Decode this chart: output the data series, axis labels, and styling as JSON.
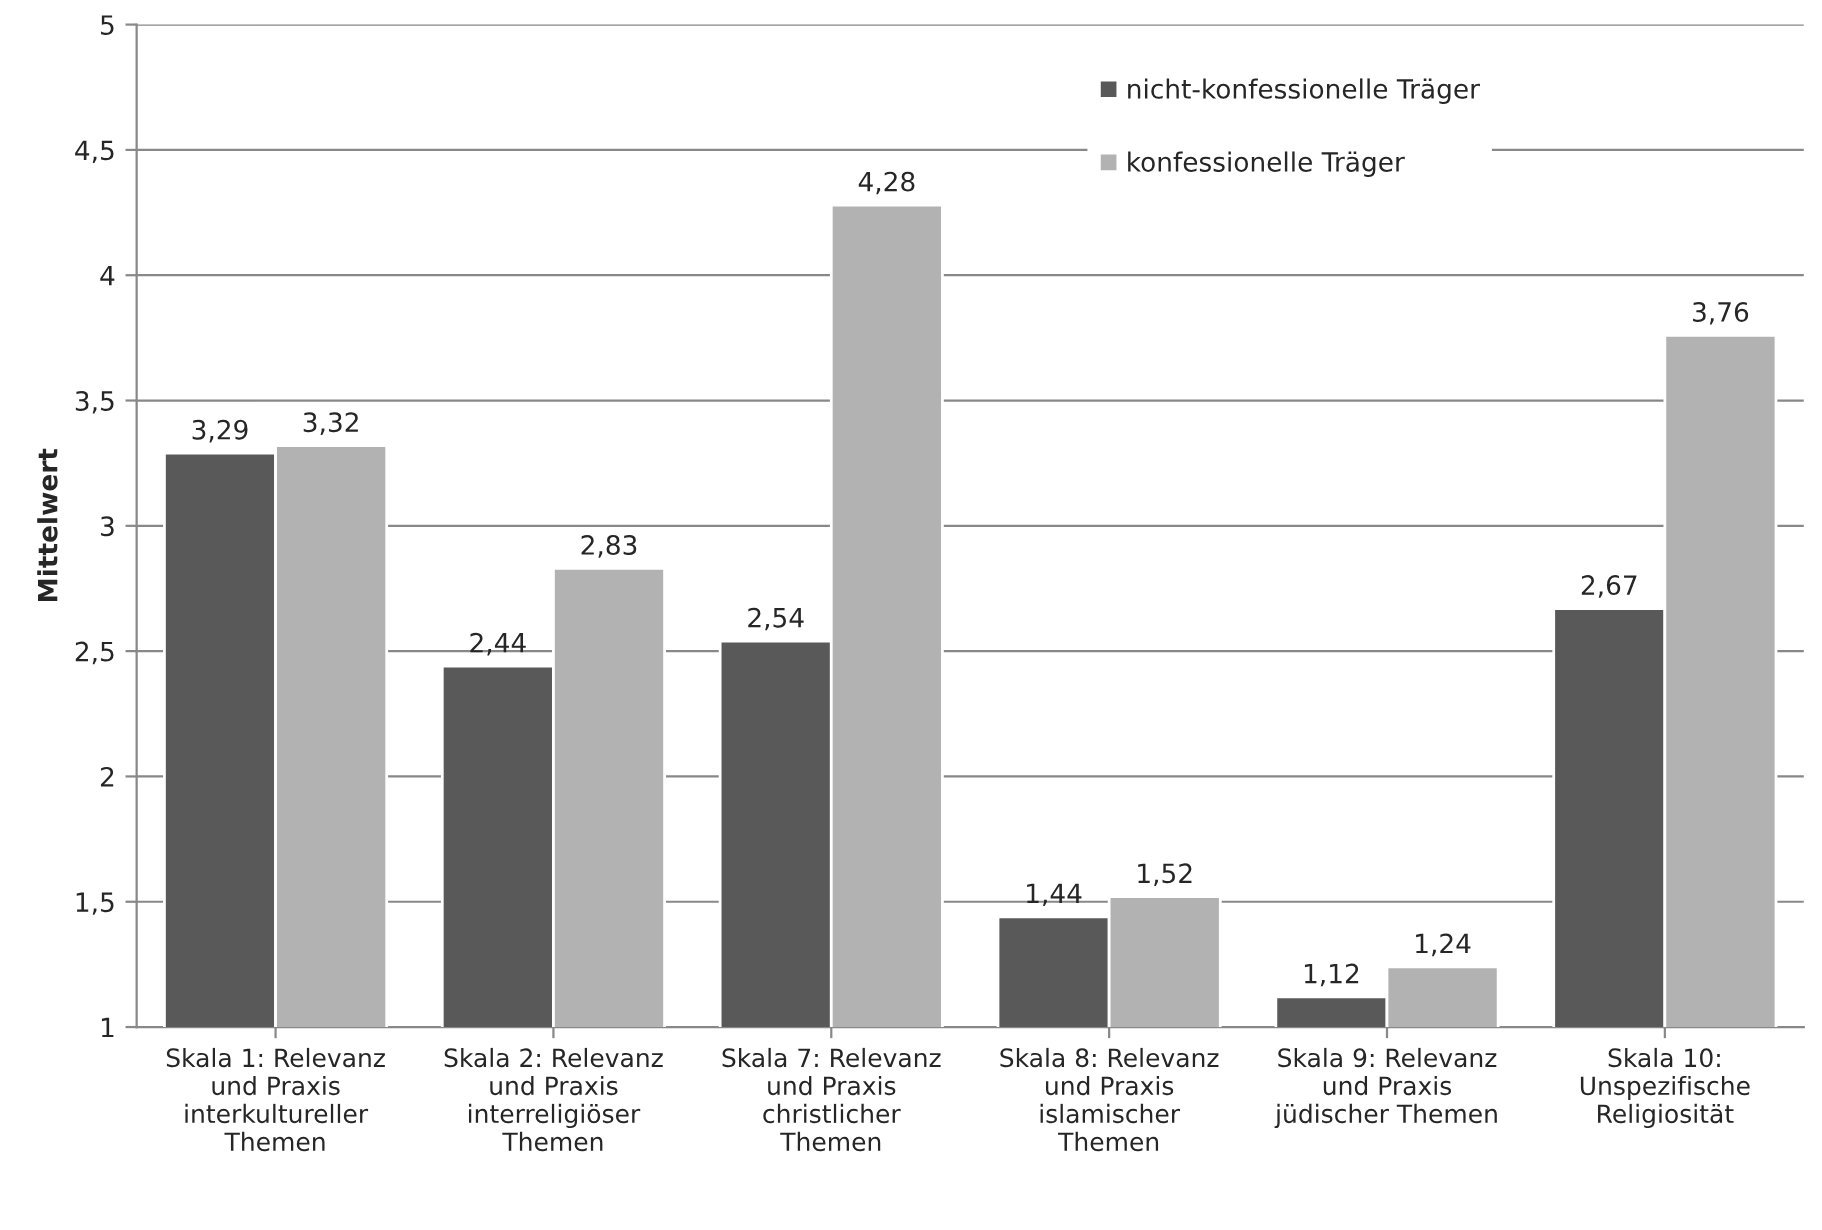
{
  "chart_data": {
    "type": "bar",
    "ylabel": "Mittelwert",
    "categories": [
      "Skala 1: Relevanz\nund Praxis\ninterkultureller\nThemen",
      "Skala 2: Relevanz\nund Praxis\ninterreligiöser\nThemen",
      "Skala 7: Relevanz\nund Praxis\nchristlicher\nThemen",
      "Skala 8: Relevanz\nund Praxis\nislamischer\nThemen",
      "Skala 9: Relevanz\nund Praxis\njüdischer Themen",
      "Skala 10:\nUnspezifische\nReligiosität"
    ],
    "series": [
      {
        "name": "nicht-konfessionelle Träger",
        "color": "#595959",
        "values": [
          3.29,
          2.44,
          2.54,
          1.44,
          1.12,
          2.67
        ],
        "value_labels": [
          "3,29",
          "2,44",
          "2,54",
          "1,44",
          "1,12",
          "2,67"
        ]
      },
      {
        "name": "konfessionelle Träger",
        "color": "#b2b2b2",
        "values": [
          3.32,
          2.83,
          4.28,
          1.52,
          1.24,
          3.76
        ],
        "value_labels": [
          "3,32",
          "2,83",
          "4,28",
          "1,52",
          "1,24",
          "3,76"
        ]
      }
    ],
    "ylim": [
      1,
      5
    ],
    "yticks": [
      1,
      {
        "value": 1.5,
        "label": "1,5"
      },
      2,
      {
        "value": 2.5,
        "label": "2,5"
      },
      3,
      {
        "value": 3.5,
        "label": "3,5"
      },
      4,
      {
        "value": 4.5,
        "label": "4,5"
      },
      5
    ],
    "grid": "y",
    "legend": "top right"
  }
}
